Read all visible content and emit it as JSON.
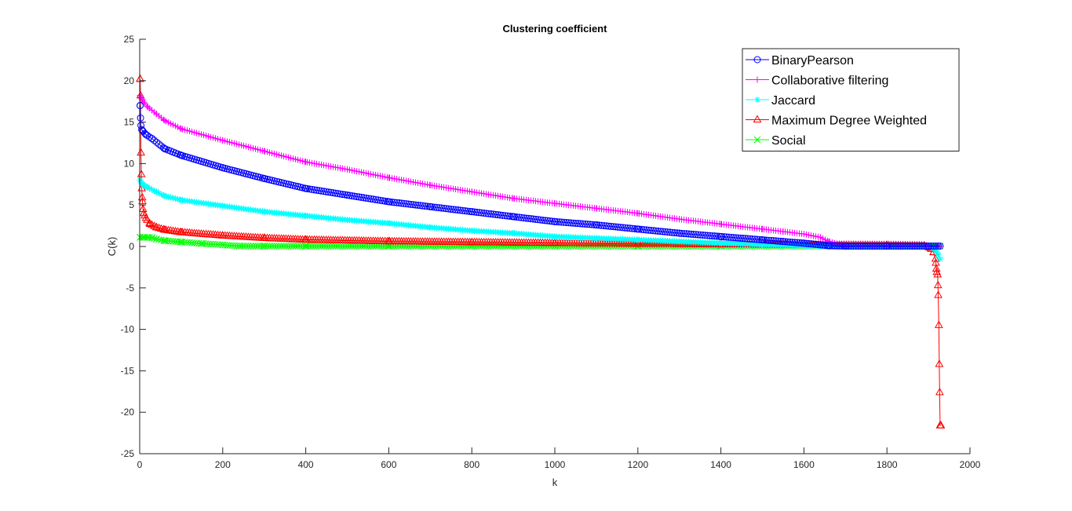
{
  "chart_data": {
    "type": "line",
    "title": "Clustering coefficient",
    "xlabel": "k",
    "ylabel": "C(k)",
    "xlim": [
      0,
      2000
    ],
    "ylim": [
      -25,
      25
    ],
    "xticks": [
      0,
      200,
      400,
      600,
      800,
      1000,
      1200,
      1400,
      1600,
      1800,
      2000
    ],
    "yticks": [
      25,
      20,
      15,
      10,
      5,
      0,
      -5,
      -10,
      -15,
      -20,
      -25
    ],
    "grid": false,
    "legend_position": "top-right",
    "series": [
      {
        "name": "BinaryPearson",
        "color": "#0000ff",
        "marker": "circle",
        "x": [
          1,
          2,
          3,
          5,
          8,
          15,
          30,
          60,
          100,
          200,
          300,
          400,
          500,
          600,
          700,
          800,
          900,
          1000,
          1100,
          1200,
          1300,
          1400,
          1500,
          1550,
          1600,
          1640,
          1660,
          1700,
          1800,
          1900,
          1928
        ],
        "y": [
          17.0,
          15.5,
          14.6,
          14.1,
          13.9,
          13.5,
          13.0,
          11.8,
          11.0,
          9.5,
          8.2,
          7.0,
          6.2,
          5.4,
          4.8,
          4.2,
          3.6,
          3.0,
          2.6,
          2.1,
          1.6,
          1.2,
          0.8,
          0.6,
          0.4,
          0.2,
          0.1,
          0.05,
          0.05,
          0.05,
          0.05
        ]
      },
      {
        "name": "Collaborative filtering",
        "color": "#ff00ff",
        "marker": "plus",
        "x": [
          1,
          3,
          5,
          10,
          20,
          40,
          60,
          100,
          200,
          300,
          400,
          500,
          600,
          700,
          800,
          900,
          1000,
          1100,
          1200,
          1300,
          1400,
          1500,
          1550,
          1600,
          1640,
          1660,
          1700,
          1800,
          1900,
          1928
        ],
        "y": [
          18.2,
          18.0,
          17.8,
          17.4,
          16.8,
          16.0,
          15.2,
          14.2,
          12.8,
          11.5,
          10.2,
          9.3,
          8.3,
          7.4,
          6.6,
          5.8,
          5.2,
          4.6,
          4.0,
          3.3,
          2.7,
          2.1,
          1.8,
          1.5,
          1.1,
          0.6,
          0.05,
          0.05,
          0.05,
          0.05
        ]
      },
      {
        "name": "Jaccard",
        "color": "#00ffff",
        "marker": "star",
        "x": [
          1,
          3,
          5,
          10,
          20,
          40,
          60,
          100,
          200,
          300,
          400,
          500,
          600,
          700,
          800,
          900,
          1000,
          1100,
          1200,
          1300,
          1400,
          1500,
          1600,
          1660,
          1700,
          1800,
          1900,
          1915,
          1922,
          1928
        ],
        "y": [
          8.0,
          7.8,
          7.6,
          7.4,
          7.1,
          6.6,
          6.1,
          5.6,
          4.9,
          4.2,
          3.7,
          3.2,
          2.8,
          2.3,
          1.9,
          1.6,
          1.2,
          1.0,
          0.8,
          0.6,
          0.4,
          0.2,
          0.1,
          0.0,
          0.0,
          0.0,
          0.0,
          -0.3,
          -0.8,
          -1.5
        ]
      },
      {
        "name": "Maximum Degree Weighted",
        "color": "#ff0000",
        "marker": "triangle",
        "x": [
          1,
          2,
          3,
          4,
          5,
          6,
          8,
          10,
          15,
          25,
          40,
          60,
          100,
          200,
          300,
          400,
          600,
          800,
          1000,
          1200,
          1400,
          1600,
          1800,
          1890,
          1905,
          1912,
          1917,
          1919,
          1920,
          1922,
          1923,
          1925,
          1926,
          1927,
          1928,
          1930
        ],
        "y": [
          20.2,
          18.2,
          11.3,
          8.7,
          7.0,
          5.9,
          4.5,
          4.0,
          3.4,
          2.7,
          2.3,
          2.0,
          1.7,
          1.3,
          1.0,
          0.8,
          0.6,
          0.5,
          0.4,
          0.3,
          0.25,
          0.2,
          0.15,
          0.1,
          -0.2,
          -0.7,
          -1.5,
          -2.7,
          -3.1,
          -3.4,
          -4.7,
          -9.5,
          -14.2,
          -17.6,
          -21.6,
          -21.6
        ]
      },
      {
        "name": "Social",
        "color": "#00ff00",
        "marker": "x",
        "x": [
          1,
          10,
          20,
          30,
          40,
          60,
          100,
          150,
          200,
          240,
          300,
          400,
          600,
          800,
          1000,
          1200,
          1400,
          1600,
          1800,
          1900,
          1928
        ],
        "y": [
          1.1,
          1.1,
          1.1,
          1.05,
          0.9,
          0.7,
          0.55,
          0.35,
          0.2,
          0.05,
          0.05,
          0.05,
          0.05,
          0.05,
          0.05,
          0.05,
          0.05,
          0.05,
          0.05,
          0.05,
          0.05
        ]
      }
    ]
  }
}
